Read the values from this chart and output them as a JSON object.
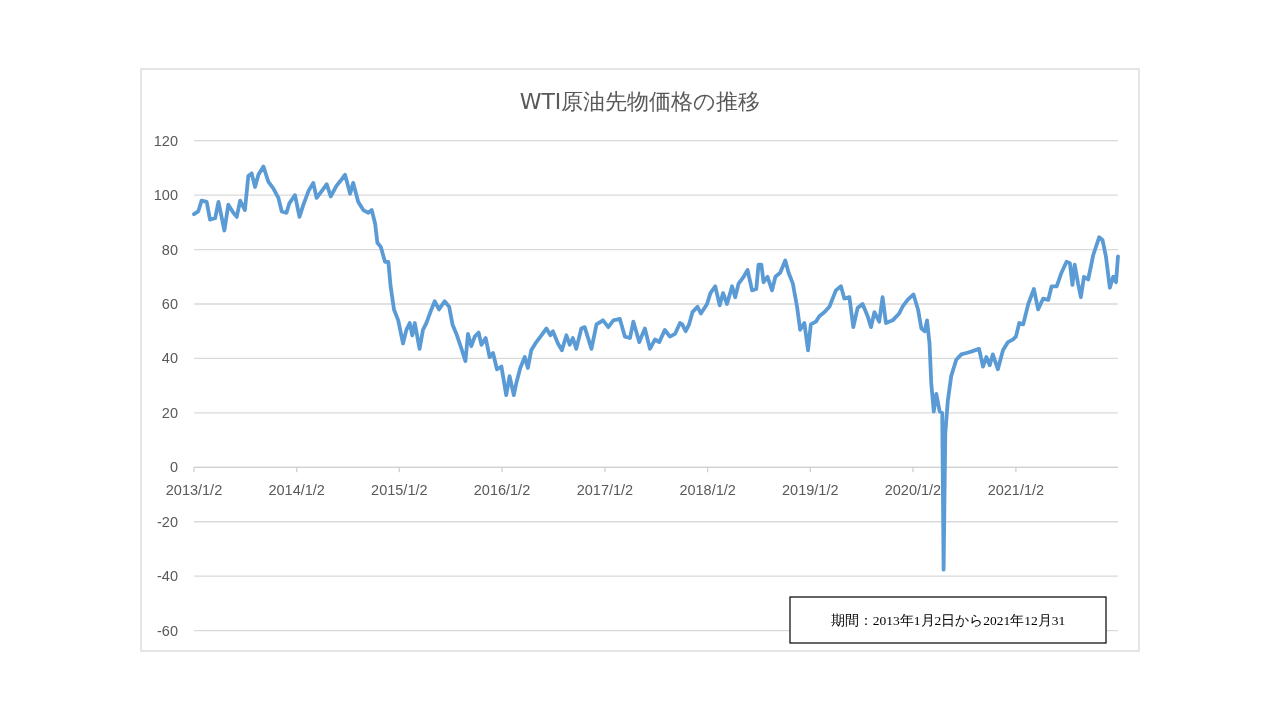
{
  "chart_data": {
    "type": "line",
    "title": "WTI原油先物価格の推移",
    "x": [
      "2013-01-02",
      "2013-01-17",
      "2013-01-29",
      "2013-02-16",
      "2013-02-28",
      "2013-03-18",
      "2013-03-30",
      "2013-04-10",
      "2013-04-20",
      "2013-05-04",
      "2013-05-22",
      "2013-06-03",
      "2013-06-15",
      "2013-07-02",
      "2013-07-14",
      "2013-07-26",
      "2013-08-07",
      "2013-08-19",
      "2013-09-06",
      "2013-09-23",
      "2013-10-11",
      "2013-10-29",
      "2013-11-10",
      "2013-11-27",
      "2013-12-07",
      "2013-12-27",
      "2014-01-12",
      "2014-01-26",
      "2014-02-13",
      "2014-03-02",
      "2014-03-14",
      "2014-04-01",
      "2014-04-19",
      "2014-05-03",
      "2014-05-24",
      "2014-06-05",
      "2014-06-23",
      "2014-07-11",
      "2014-07-22",
      "2014-08-09",
      "2014-08-27",
      "2014-09-14",
      "2014-09-26",
      "2014-10-08",
      "2014-10-16",
      "2014-10-28",
      "2014-11-12",
      "2014-11-24",
      "2014-12-02",
      "2014-12-14",
      "2014-12-29",
      "2015-01-15",
      "2015-01-27",
      "2015-02-08",
      "2015-02-17",
      "2015-02-26",
      "2015-03-15",
      "2015-03-27",
      "2015-04-08",
      "2015-04-26",
      "2015-05-08",
      "2015-05-23",
      "2015-06-12",
      "2015-06-28",
      "2015-07-10",
      "2015-07-24",
      "2015-08-11",
      "2015-08-25",
      "2015-09-03",
      "2015-09-15",
      "2015-09-27",
      "2015-10-11",
      "2015-10-21",
      "2015-11-05",
      "2015-11-19",
      "2015-12-01",
      "2015-12-15",
      "2015-12-31",
      "2016-01-17",
      "2016-01-29",
      "2016-02-13",
      "2016-02-22",
      "2016-03-07",
      "2016-03-23",
      "2016-04-03",
      "2016-04-15",
      "2016-05-03",
      "2016-05-21",
      "2016-06-08",
      "2016-06-22",
      "2016-07-01",
      "2016-07-19",
      "2016-08-02",
      "2016-08-18",
      "2016-08-30",
      "2016-09-10",
      "2016-09-22",
      "2016-10-10",
      "2016-10-22",
      "2016-11-15",
      "2016-12-03",
      "2016-12-26",
      "2017-01-14",
      "2017-02-01",
      "2017-02-24",
      "2017-03-14",
      "2017-04-01",
      "2017-04-13",
      "2017-05-04",
      "2017-05-24",
      "2017-06-11",
      "2017-06-29",
      "2017-07-14",
      "2017-08-03",
      "2017-08-21",
      "2017-09-08",
      "2017-09-26",
      "2017-10-04",
      "2017-10-16",
      "2017-10-28",
      "2017-11-09",
      "2017-11-27",
      "2017-12-09",
      "2017-12-31",
      "2018-01-12",
      "2018-01-29",
      "2018-02-14",
      "2018-02-26",
      "2018-03-12",
      "2018-03-30",
      "2018-04-10",
      "2018-04-22",
      "2018-05-10",
      "2018-05-24",
      "2018-06-09",
      "2018-06-24",
      "2018-07-02",
      "2018-07-12",
      "2018-07-20",
      "2018-08-03",
      "2018-08-19",
      "2018-08-31",
      "2018-09-17",
      "2018-10-05",
      "2018-10-17",
      "2018-11-01",
      "2018-11-16",
      "2018-11-27",
      "2018-12-12",
      "2018-12-25",
      "2019-01-04",
      "2019-01-22",
      "2019-02-03",
      "2019-02-21",
      "2019-03-11",
      "2019-04-03",
      "2019-04-21",
      "2019-05-03",
      "2019-05-21",
      "2019-06-04",
      "2019-06-19",
      "2019-07-07",
      "2019-07-25",
      "2019-08-06",
      "2019-08-18",
      "2019-09-04",
      "2019-09-16",
      "2019-09-28",
      "2019-10-22",
      "2019-11-14",
      "2019-11-26",
      "2019-12-14",
      "2020-01-04",
      "2020-01-20",
      "2020-02-01",
      "2020-02-13",
      "2020-02-21",
      "2020-03-01",
      "2020-03-07",
      "2020-03-16",
      "2020-03-25",
      "2020-04-06",
      "2020-04-15",
      "2020-04-20",
      "2020-04-26",
      "2020-05-05",
      "2020-05-17",
      "2020-06-04",
      "2020-06-22",
      "2020-07-10",
      "2020-07-27",
      "2020-08-24",
      "2020-09-07",
      "2020-09-19",
      "2020-10-01",
      "2020-10-12",
      "2020-10-30",
      "2020-11-17",
      "2020-12-05",
      "2020-12-23",
      "2021-01-02",
      "2021-01-14",
      "2021-01-28",
      "2021-02-15",
      "2021-03-07",
      "2021-03-22",
      "2021-04-09",
      "2021-04-27",
      "2021-05-09",
      "2021-05-27",
      "2021-06-13",
      "2021-07-01",
      "2021-07-13",
      "2021-07-22",
      "2021-07-30",
      "2021-08-11",
      "2021-08-21",
      "2021-09-01",
      "2021-09-16",
      "2021-10-04",
      "2021-10-25",
      "2021-11-06",
      "2021-11-18",
      "2021-12-02",
      "2021-12-14",
      "2021-12-24",
      "2021-12-31"
    ],
    "series": [
      {
        "color": "#5b9bd5",
        "values": [
          93,
          94,
          98,
          97.5,
          91,
          91.5,
          97.5,
          92,
          87,
          96.5,
          93.5,
          92,
          98,
          94.5,
          107,
          108,
          103,
          107.5,
          110.5,
          105,
          102.5,
          99,
          94,
          93.5,
          97,
          100,
          92,
          96.5,
          101.5,
          104.5,
          99,
          101.5,
          104,
          99.5,
          103.5,
          105,
          107.5,
          100.5,
          104.5,
          97.5,
          94.5,
          93.5,
          94.5,
          89.5,
          82.5,
          81,
          75.5,
          75.5,
          66.5,
          58,
          54,
          45.5,
          50.5,
          53,
          48.5,
          53,
          43.5,
          50.5,
          53,
          58,
          61,
          58,
          61,
          59,
          52.5,
          49,
          43.5,
          39,
          49,
          44.5,
          48,
          49.5,
          45,
          47.5,
          40.5,
          42,
          36,
          37,
          26.5,
          33.5,
          26.5,
          31,
          36.5,
          40.5,
          36.5,
          43,
          46,
          48.5,
          51,
          48.5,
          50,
          45.5,
          43,
          48.5,
          45,
          47.5,
          43.5,
          51,
          51.5,
          43.5,
          52.5,
          54,
          51.5,
          54,
          54.5,
          48,
          47.5,
          53.5,
          46,
          51,
          43.5,
          47,
          46,
          50.5,
          48,
          49,
          53,
          52.5,
          50,
          52.5,
          57,
          59,
          56.5,
          60,
          64,
          66.5,
          59.5,
          64,
          60,
          66.5,
          62.5,
          67.5,
          70,
          72.5,
          65,
          65.5,
          74.5,
          74.5,
          68,
          70,
          65,
          70,
          71.5,
          76,
          71.5,
          67.5,
          59,
          50.5,
          53,
          43,
          52.5,
          53.5,
          55.5,
          57,
          59,
          65,
          66.5,
          62,
          62.5,
          51.5,
          58.5,
          60,
          55.5,
          51.5,
          57,
          53.5,
          62.5,
          53,
          54,
          56.5,
          59,
          61.5,
          63.5,
          58,
          51,
          50,
          54,
          45.5,
          31,
          20.5,
          27,
          20.5,
          20,
          -37.6,
          12.5,
          24.5,
          33.5,
          39.5,
          41.5,
          42,
          42.5,
          43.5,
          37,
          40.5,
          37.5,
          41.5,
          36,
          43,
          46,
          47,
          48,
          53,
          52.5,
          60,
          65.5,
          58,
          62,
          61.5,
          66.5,
          66.5,
          71.5,
          75.5,
          75,
          67,
          74.5,
          67.5,
          62.5,
          70,
          69,
          78,
          84.5,
          83.5,
          77.5,
          66,
          70,
          68,
          77.5
        ]
      }
    ],
    "xlim": [
      "2013-01-02",
      "2021-12-31"
    ],
    "xticks": [
      {
        "value": "2013-01-02",
        "label": "2013/1/2"
      },
      {
        "value": "2014-01-02",
        "label": "2014/1/2"
      },
      {
        "value": "2015-01-02",
        "label": "2015/1/2"
      },
      {
        "value": "2016-01-02",
        "label": "2016/1/2"
      },
      {
        "value": "2017-01-02",
        "label": "2017/1/2"
      },
      {
        "value": "2018-01-02",
        "label": "2018/1/2"
      },
      {
        "value": "2019-01-02",
        "label": "2019/1/2"
      },
      {
        "value": "2020-01-02",
        "label": "2020/1/2"
      },
      {
        "value": "2021-01-02",
        "label": "2021/1/2"
      }
    ],
    "ylim": [
      -60,
      120
    ],
    "yticks": [
      -60,
      -40,
      -20,
      0,
      20,
      40,
      60,
      80,
      100,
      120
    ],
    "grid": "y",
    "line_style": "solid",
    "annotations": [
      "期間：2013年1月2日から2021年12月31"
    ]
  }
}
